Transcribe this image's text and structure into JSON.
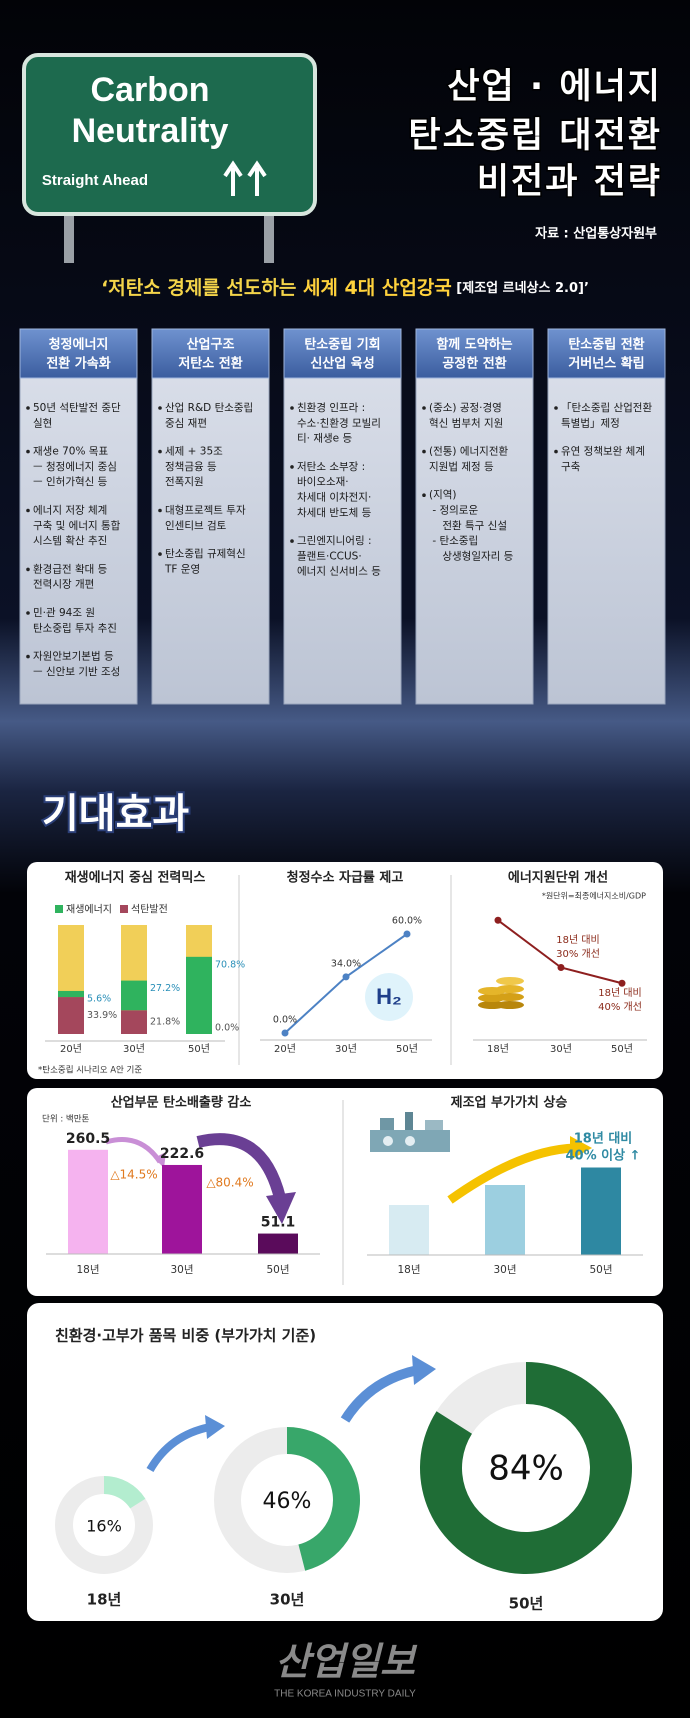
{
  "header": {
    "sign": {
      "line1": "Carbon",
      "line2": "Neutrality",
      "line3": "Straight Ahead"
    },
    "title": [
      "산업 · 에너지",
      "탄소중립 대전환",
      "비전과 전략"
    ],
    "source": "자료 : 산업통상자원부"
  },
  "vision": {
    "lead": "‘저탄소 경제를 선도하는 ",
    "highlight": "세계 4대 산업강국",
    "note": " [제조업 르네상스 2.0]’"
  },
  "strategies": [
    {
      "title": [
        "청정에너지",
        "전환 가속화"
      ],
      "items": [
        [
          "50년 석탄발전 중단",
          "실현"
        ],
        [
          "재생e 70% 목표",
          "ㅡ 청정에너지 중심",
          "ㅡ 인허가혁신 등"
        ],
        [
          "에너지 저장 체계",
          "구축 및 에너지 통합",
          "시스템 확산 추진"
        ],
        [
          "환경급전 확대 등",
          "전력시장 개편"
        ],
        [
          "민·관 94조 원",
          "탄소중립 투자 추진"
        ],
        [
          "자원안보기본법 등",
          "ㅡ 신안보 기반 조성"
        ]
      ]
    },
    {
      "title": [
        "산업구조",
        "저탄소 전환"
      ],
      "items": [
        [
          "산업 R&D 탄소중립",
          "중심 재편"
        ],
        [
          "세제 + 35조",
          "정책금융 등",
          "전폭지원"
        ],
        [
          "대형프로젝트 투자",
          "인센티브 검토"
        ],
        [
          "탄소중립 규제혁신",
          "TF 운영"
        ]
      ]
    },
    {
      "title": [
        "탄소중립 기회",
        "신산업 육성"
      ],
      "items": [
        [
          "친환경 인프라 :",
          "수소·친환경 모빌리",
          "티· 재생e 등"
        ],
        [
          "저탄소 소부장 :",
          "바이오소재·",
          "차세대 이차전지·",
          "차세대 반도체 등"
        ],
        [
          "그린엔지니어링 :",
          "플랜트·CCUS·",
          "에너지 신서비스 등"
        ]
      ]
    },
    {
      "title": [
        "함께 도약하는",
        "공정한 전환"
      ],
      "items": [
        [
          "(중소) 공정·경영",
          "혁신 범부처 지원"
        ],
        [
          "(전통) 에너지전환",
          "지원법 제정 등"
        ],
        [
          "(지역)",
          " - 정의로운",
          "    전환 특구 신설",
          " - 탄소중립",
          "    상생형일자리 등"
        ]
      ]
    },
    {
      "title": [
        "탄소중립 전환",
        "거버넌스 확립"
      ],
      "items": [
        [
          "「탄소중립 산업전환",
          "특별법」제정"
        ],
        [
          "유연 정책보완 체계",
          "구축"
        ]
      ]
    }
  ],
  "effects_title": "기대효과",
  "chart_data": [
    {
      "type": "stacked-bar",
      "title": "재생에너지 중심 전력믹스",
      "categories": [
        "20년",
        "30년",
        "50년"
      ],
      "series": [
        {
          "name": "재생에너지",
          "color": "#2fb35e",
          "values": [
            5.6,
            27.2,
            70.8
          ],
          "value_labels": [
            "5.6%",
            "27.2%",
            "70.8%"
          ]
        },
        {
          "name": "석탄발전",
          "color": "#a4475c",
          "values": [
            33.9,
            21.8,
            0.0
          ],
          "value_labels": [
            "33.9%",
            "21.8%",
            "0.0%"
          ]
        }
      ],
      "remainder_color": "#f1cf58",
      "ylim": [
        0,
        100
      ],
      "note": "*탄소중립 시나리오 A안 기준"
    },
    {
      "type": "line",
      "title": "청정수소 자급률 제고",
      "categories": [
        "20년",
        "30년",
        "50년"
      ],
      "values": [
        0.0,
        34.0,
        60.0
      ],
      "value_labels": [
        "0.0%",
        "34.0%",
        "60.0%"
      ],
      "color": "#4d82c4",
      "ylim": [
        0,
        70
      ],
      "icon_label": "H₂"
    },
    {
      "type": "line",
      "title": "에너지원단위 개선",
      "note": "*원단위=최종에너지소비/GDP",
      "categories": [
        "18년",
        "30년",
        "50년"
      ],
      "values": [
        100,
        70,
        60
      ],
      "color": "#8e1f1f",
      "ylim": [
        50,
        105
      ],
      "annotations": [
        [
          "18년 대비",
          "30% 개선"
        ],
        [
          "18년 대비",
          "40% 개선"
        ]
      ]
    },
    {
      "type": "bar",
      "title": "산업부문 탄소배출량 감소",
      "unit": "단위 : 백만톤",
      "categories": [
        "18년",
        "30년",
        "50년"
      ],
      "values": [
        260.5,
        222.6,
        51.1
      ],
      "colors": [
        "#f5b3ef",
        "#9e149b",
        "#5a0b5b"
      ],
      "ylim": [
        0,
        270
      ],
      "annotations": [
        "△14.5%",
        "△80.4%"
      ]
    },
    {
      "type": "bar",
      "title": "제조업 부가가치 상승",
      "categories": [
        "18년",
        "30년",
        "50년"
      ],
      "values": [
        100,
        140,
        175
      ],
      "colors": [
        "#d7ebf2",
        "#9ccfe0",
        "#2e88a2"
      ],
      "ylim": [
        0,
        200
      ],
      "annotation": [
        "18년 대비",
        "40% 이상 ↑"
      ]
    },
    {
      "type": "donut",
      "title": "친환경·고부가 품목 비중 (부가가치 기준)",
      "categories": [
        "18년",
        "30년",
        "50년"
      ],
      "values": [
        16,
        46,
        84
      ],
      "value_labels": [
        "16%",
        "46%",
        "84%"
      ],
      "colors": [
        "#b3edcf",
        "#38a76a",
        "#1f6d36"
      ]
    }
  ],
  "footer": {
    "logo": "산업일보",
    "tagline": "THE KOREA INDUSTRY DAILY"
  }
}
